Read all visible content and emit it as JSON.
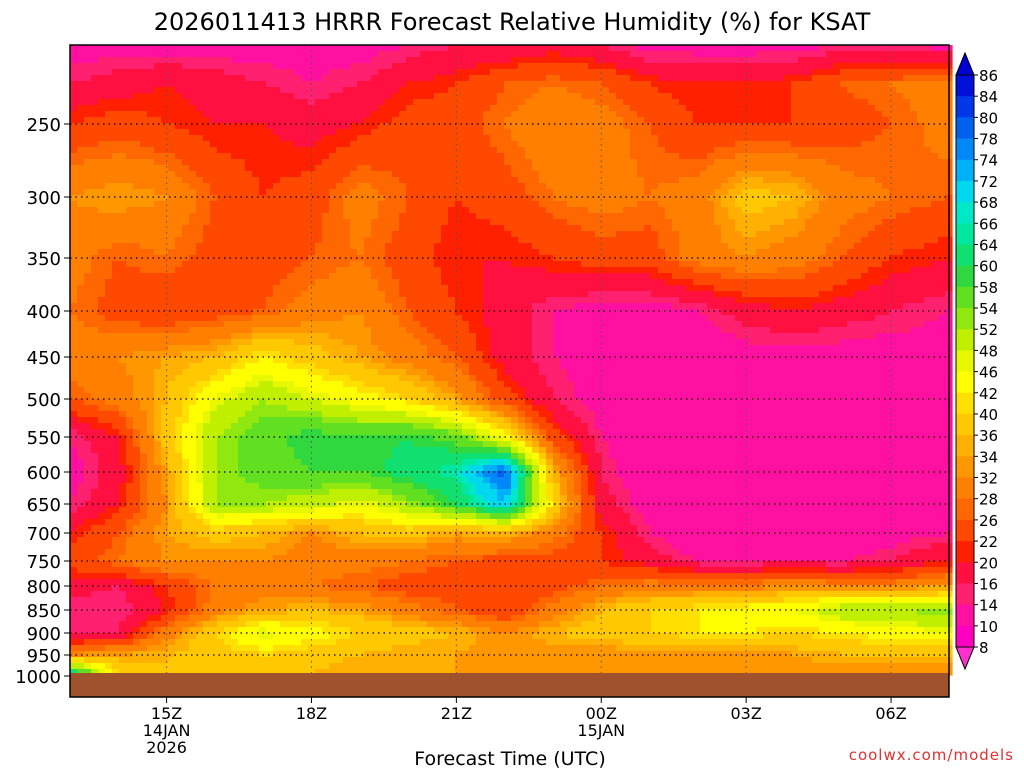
{
  "chart_data": {
    "type": "heatmap",
    "title": "2026011413 HRRR Forecast Relative Humidity (%) for KSAT",
    "xlabel": "Forecast Time (UTC)",
    "ylabel": "",
    "credit": "coolwx.com/models",
    "x_range_hours": [
      13.0,
      31.2
    ],
    "x_ticks": [
      {
        "hour": 15,
        "label": "15Z",
        "sub1": "14JAN",
        "sub2": "2026"
      },
      {
        "hour": 18,
        "label": "18Z",
        "sub1": "",
        "sub2": ""
      },
      {
        "hour": 21,
        "label": "21Z",
        "sub1": "",
        "sub2": ""
      },
      {
        "hour": 24,
        "label": "00Z",
        "sub1": "15JAN",
        "sub2": ""
      },
      {
        "hour": 27,
        "label": "03Z",
        "sub1": "",
        "sub2": ""
      },
      {
        "hour": 30,
        "label": "06Z",
        "sub1": "",
        "sub2": ""
      }
    ],
    "y_levels": [
      {
        "p": 250,
        "label": "250"
      },
      {
        "p": 300,
        "label": "300"
      },
      {
        "p": 350,
        "label": "350"
      },
      {
        "p": 400,
        "label": "400"
      },
      {
        "p": 450,
        "label": "450"
      },
      {
        "p": 500,
        "label": "500"
      },
      {
        "p": 550,
        "label": "550"
      },
      {
        "p": 600,
        "label": "600"
      },
      {
        "p": 650,
        "label": "650"
      },
      {
        "p": 700,
        "label": "700"
      },
      {
        "p": 750,
        "label": "750"
      },
      {
        "p": 800,
        "label": "800"
      },
      {
        "p": 850,
        "label": "850"
      },
      {
        "p": 900,
        "label": "900"
      },
      {
        "p": 950,
        "label": "950"
      },
      {
        "p": 1000,
        "label": "1000"
      }
    ],
    "colorbar": {
      "labels": [
        "86",
        "84",
        "80",
        "78",
        "74",
        "72",
        "68",
        "66",
        "64",
        "60",
        "58",
        "54",
        "52",
        "48",
        "46",
        "42",
        "40",
        "36",
        "34",
        "32",
        "28",
        "26",
        "22",
        "20",
        "16",
        "14",
        "10",
        "8"
      ],
      "colors": [
        "#0010d8",
        "#0038e8",
        "#0060f0",
        "#0088f8",
        "#00b0f8",
        "#00d8f0",
        "#00e8c8",
        "#00e8a0",
        "#10e070",
        "#30d840",
        "#60e020",
        "#90e810",
        "#c0f000",
        "#e8f800",
        "#ffff00",
        "#ffe000",
        "#ffc800",
        "#ffb000",
        "#ff9800",
        "#ff8000",
        "#ff6800",
        "#ff4800",
        "#ff2000",
        "#ff1040",
        "#ff2070",
        "#ff10a0",
        "#ff00c0"
      ],
      "top_arrow_color": "#0000d0",
      "bottom_arrow_color": "#ff30d0"
    },
    "underground_color": "#a0522d",
    "field": {
      "times": [
        13.0,
        14.0,
        15.0,
        16.0,
        17.0,
        18.0,
        19.0,
        20.0,
        21.0,
        22.0,
        23.0,
        24.0,
        25.0,
        26.0,
        27.0,
        28.0,
        29.0,
        30.0,
        31.2
      ],
      "levels": [
        150,
        200,
        250,
        300,
        350,
        400,
        450,
        500,
        550,
        600,
        650,
        700,
        750,
        800,
        850,
        900,
        950,
        990
      ],
      "rh": [
        [
          12,
          12,
          12,
          12,
          12,
          12,
          12,
          14,
          16,
          16,
          18,
          16,
          12,
          12,
          12,
          12,
          14,
          14,
          12
        ],
        [
          16,
          18,
          20,
          18,
          16,
          14,
          16,
          20,
          22,
          26,
          28,
          26,
          22,
          20,
          20,
          22,
          26,
          28,
          30
        ],
        [
          22,
          24,
          22,
          20,
          20,
          18,
          20,
          24,
          24,
          28,
          32,
          30,
          26,
          22,
          22,
          22,
          24,
          26,
          30
        ],
        [
          32,
          34,
          32,
          26,
          22,
          24,
          30,
          26,
          22,
          24,
          28,
          30,
          28,
          30,
          38,
          36,
          30,
          28,
          26
        ],
        [
          30,
          26,
          28,
          24,
          24,
          26,
          28,
          24,
          20,
          20,
          22,
          24,
          24,
          30,
          32,
          30,
          26,
          22,
          20
        ],
        [
          28,
          24,
          22,
          24,
          26,
          30,
          32,
          26,
          22,
          18,
          14,
          12,
          12,
          14,
          18,
          20,
          18,
          16,
          14
        ],
        [
          30,
          32,
          34,
          36,
          42,
          38,
          34,
          30,
          26,
          18,
          14,
          12,
          10,
          10,
          12,
          12,
          12,
          12,
          12
        ],
        [
          26,
          30,
          36,
          46,
          52,
          48,
          44,
          40,
          34,
          24,
          16,
          12,
          10,
          10,
          10,
          10,
          10,
          10,
          12
        ],
        [
          14,
          20,
          38,
          52,
          56,
          60,
          58,
          60,
          56,
          44,
          24,
          14,
          10,
          10,
          10,
          10,
          10,
          10,
          12
        ],
        [
          12,
          18,
          34,
          52,
          56,
          58,
          58,
          62,
          66,
          80,
          36,
          16,
          10,
          10,
          10,
          10,
          10,
          12,
          14
        ],
        [
          14,
          20,
          32,
          52,
          52,
          50,
          46,
          52,
          60,
          72,
          40,
          18,
          12,
          10,
          10,
          10,
          10,
          12,
          14
        ],
        [
          20,
          26,
          34,
          38,
          36,
          32,
          36,
          38,
          34,
          36,
          30,
          22,
          14,
          10,
          10,
          10,
          10,
          12,
          14
        ],
        [
          24,
          28,
          32,
          32,
          32,
          30,
          30,
          28,
          26,
          24,
          24,
          22,
          18,
          14,
          14,
          14,
          14,
          16,
          20
        ],
        [
          18,
          16,
          22,
          28,
          30,
          28,
          26,
          24,
          24,
          22,
          24,
          28,
          30,
          30,
          30,
          32,
          30,
          30,
          34
        ],
        [
          14,
          14,
          20,
          30,
          34,
          36,
          34,
          30,
          26,
          22,
          30,
          36,
          40,
          42,
          44,
          46,
          52,
          52,
          54
        ],
        [
          14,
          16,
          30,
          40,
          48,
          44,
          40,
          38,
          36,
          32,
          36,
          38,
          40,
          42,
          42,
          40,
          42,
          44,
          46
        ],
        [
          32,
          34,
          36,
          38,
          40,
          38,
          36,
          34,
          34,
          32,
          32,
          32,
          32,
          32,
          32,
          34,
          36,
          36,
          36
        ],
        [
          64,
          40,
          36,
          36,
          38,
          36,
          34,
          34,
          34,
          32,
          32,
          32,
          32,
          32,
          32,
          32,
          32,
          32,
          32
        ]
      ]
    }
  }
}
